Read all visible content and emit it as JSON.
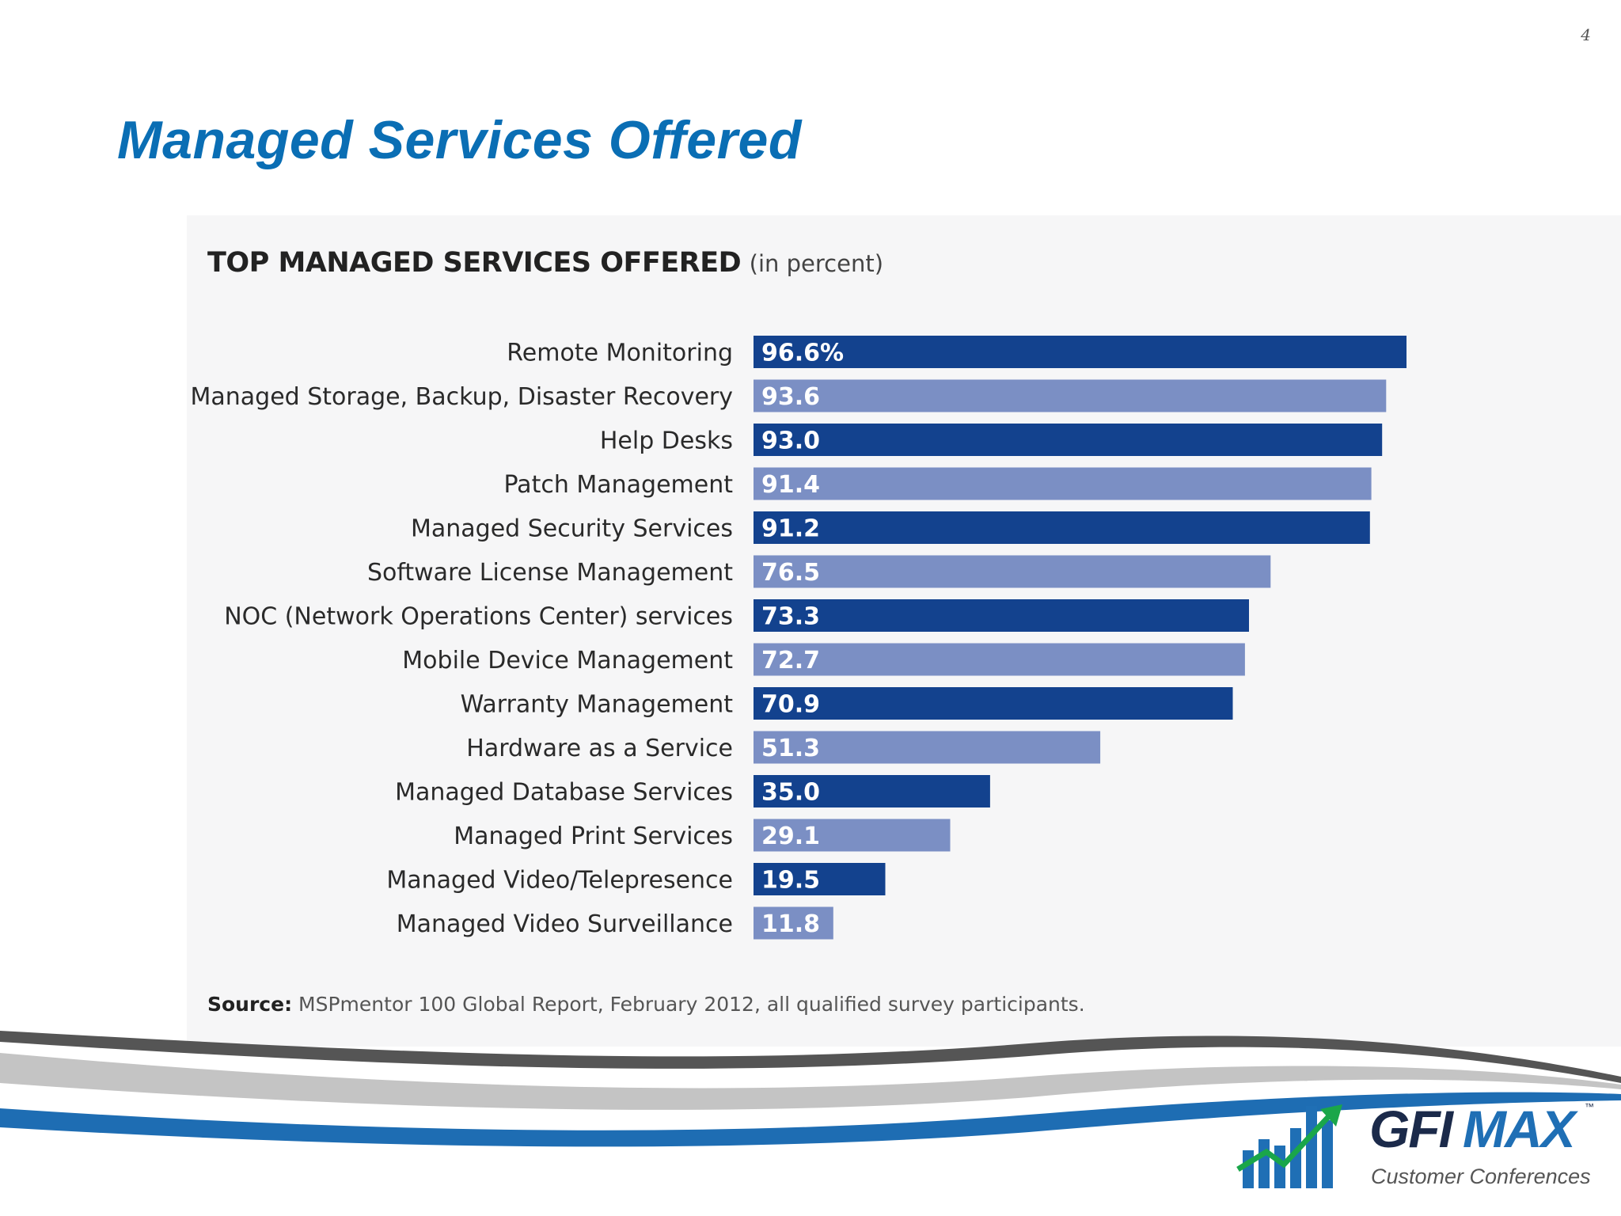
{
  "slide": {
    "page_number": "4",
    "title": "Managed Services Offered"
  },
  "chart_data": {
    "type": "bar",
    "orientation": "horizontal",
    "title": "TOP MANAGED SERVICES OFFERED",
    "title_unit": "(in percent)",
    "categories": [
      "Remote Monitoring",
      "Managed Storage, Backup, Disaster Recovery",
      "Help Desks",
      "Patch Management",
      "Managed Security Services",
      "Software License Management",
      "NOC (Network Operations Center) services",
      "Mobile Device Management",
      "Warranty Management",
      "Hardware as a Service",
      "Managed Database Services",
      "Managed Print Services",
      "Managed Video/Telepresence",
      "Managed Video Surveillance"
    ],
    "values": [
      96.6,
      93.6,
      93.0,
      91.4,
      91.2,
      76.5,
      73.3,
      72.7,
      70.9,
      51.3,
      35.0,
      29.1,
      19.5,
      11.8
    ],
    "value_labels": [
      "96.6%",
      "93.6",
      "93.0",
      "91.4",
      "91.2",
      "76.5",
      "73.3",
      "72.7",
      "70.9",
      "51.3",
      "35.0",
      "29.1",
      "19.5",
      "11.8"
    ],
    "xlim": [
      0,
      100
    ],
    "grid": false,
    "legend": "none",
    "bar_colors": [
      "#13428e",
      "#7b8fc4"
    ],
    "source_label": "Source:",
    "source_text": "MSPmentor 100 Global Report, February 2012, all qualified survey participants."
  },
  "branding": {
    "logo_primary": "GFI",
    "logo_secondary": "MAX",
    "trademark": "™",
    "tagline": "Customer Conferences",
    "colors": {
      "title_blue": "#0a6eb4",
      "logo_green": "#1aa64a",
      "logo_blue": "#1f6fb5",
      "logo_navy": "#1b2a4a",
      "swoosh_dark": "#555555",
      "swoosh_light": "#c4c4c4",
      "swoosh_blue": "#1e6db3"
    }
  }
}
